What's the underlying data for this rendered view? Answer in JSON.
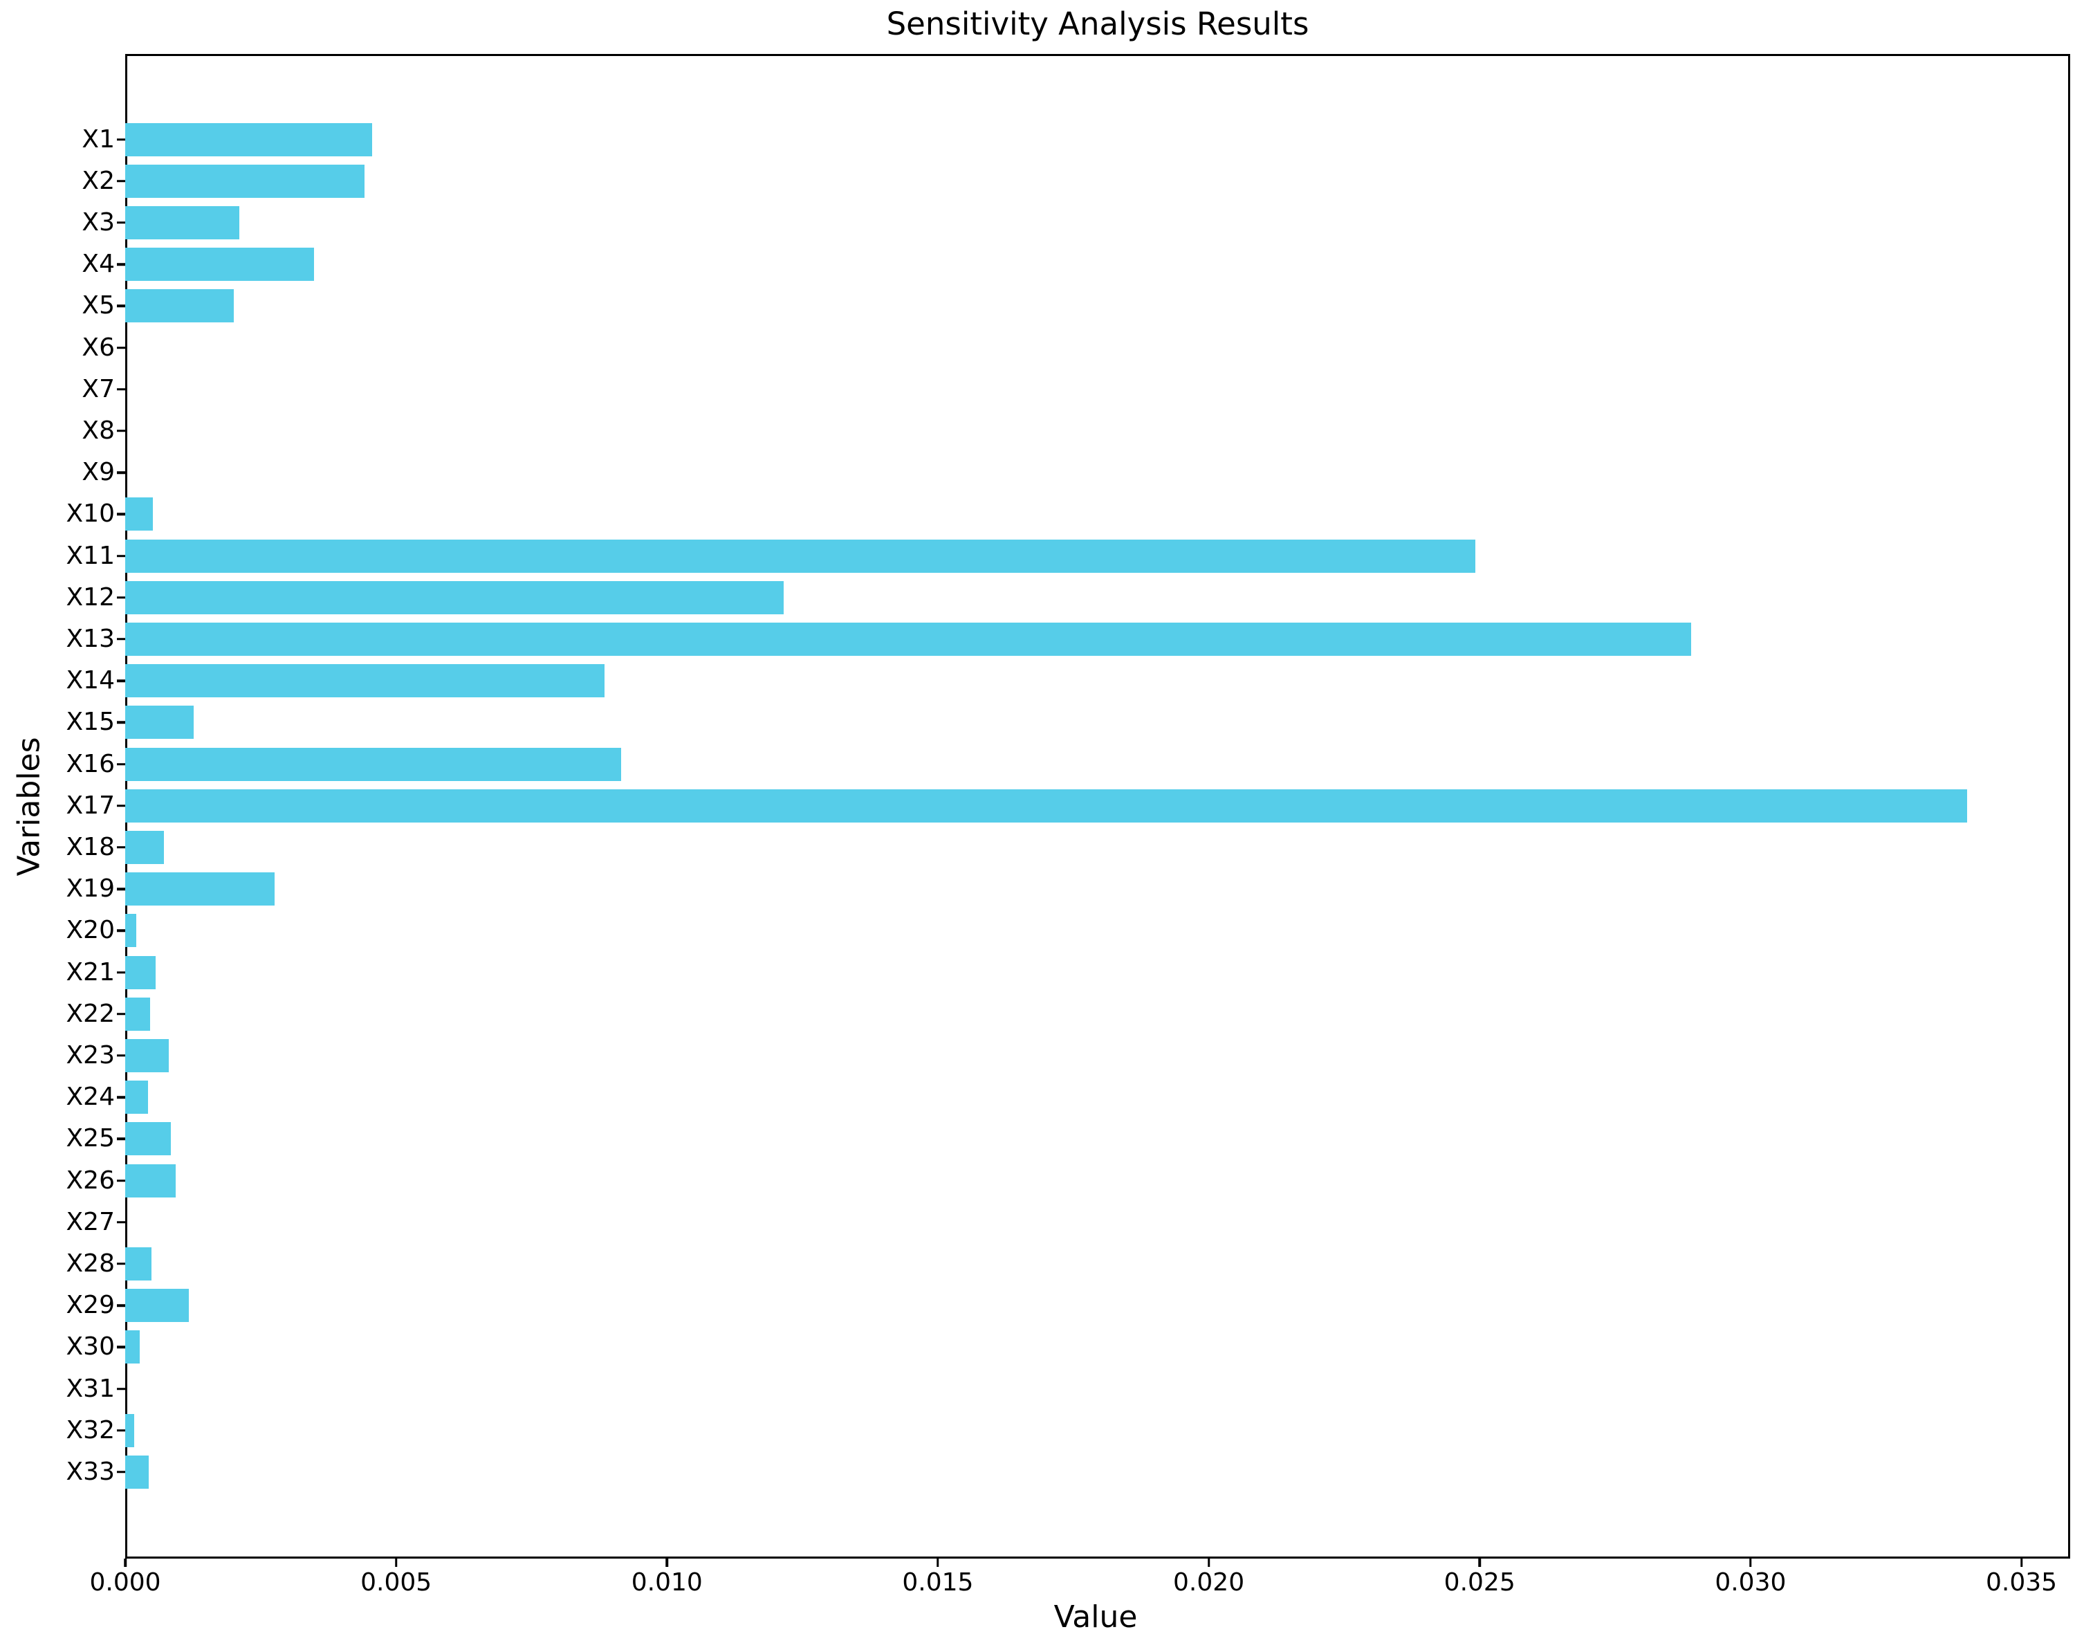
{
  "chart_data": {
    "type": "bar",
    "orientation": "horizontal",
    "title": "Sensitivity Analysis Results",
    "xlabel": "Value",
    "ylabel": "Variables",
    "categories": [
      "X1",
      "X2",
      "X3",
      "X4",
      "X5",
      "X6",
      "X7",
      "X8",
      "X9",
      "X10",
      "X11",
      "X12",
      "X13",
      "X14",
      "X15",
      "X16",
      "X17",
      "X18",
      "X19",
      "X20",
      "X21",
      "X22",
      "X23",
      "X24",
      "X25",
      "X26",
      "X27",
      "X28",
      "X29",
      "X30",
      "X31",
      "X32",
      "X33"
    ],
    "values": [
      0.00456,
      0.00442,
      0.00211,
      0.00349,
      0.00201,
      0.0,
      0.0,
      0.0,
      0.0,
      0.00051,
      0.02492,
      0.01215,
      0.02891,
      0.00885,
      0.00126,
      0.00915,
      0.034,
      0.00072,
      0.00276,
      0.00021,
      0.00056,
      0.00046,
      0.0008,
      0.00042,
      0.00084,
      0.00093,
      0.0,
      0.00048,
      0.00117,
      0.00027,
      0.0,
      0.00016,
      0.00043
    ],
    "xlim": [
      0,
      0.0359
    ],
    "xticks": [
      0.0,
      0.005,
      0.01,
      0.015,
      0.02,
      0.025,
      0.03,
      0.035
    ],
    "xtick_labels": [
      "0.000",
      "0.005",
      "0.010",
      "0.015",
      "0.020",
      "0.025",
      "0.030",
      "0.035"
    ],
    "grid": false,
    "legend": null,
    "bar_color": "#56cde9",
    "axis_color": "#000000",
    "background_color": "#ffffff"
  }
}
